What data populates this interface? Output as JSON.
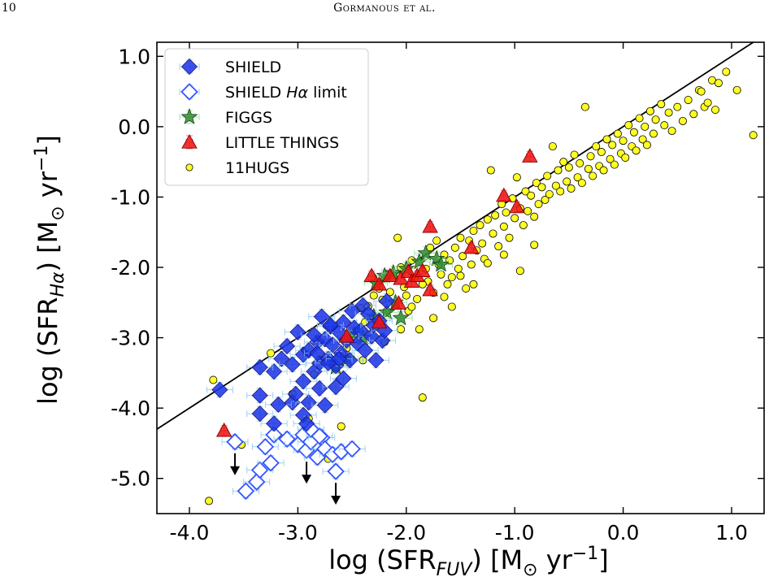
{
  "header": {
    "page_number": "10",
    "running_head": "Gormanous et al."
  },
  "chart_data": {
    "type": "scatter",
    "xlabel_parts": [
      "log",
      "(SFR",
      "FUV",
      ") [M",
      "⊙",
      " yr",
      "−1",
      "]"
    ],
    "ylabel_parts": [
      "log",
      "(SFR",
      "Hα",
      ") [M",
      "⊙",
      " yr",
      "−1",
      "]"
    ],
    "xlim": [
      -4.3,
      1.3
    ],
    "ylim": [
      -5.5,
      1.2
    ],
    "xticks": [
      -4.0,
      -3.0,
      -2.0,
      -1.0,
      0.0,
      1.0
    ],
    "yticks": [
      -5.0,
      -4.0,
      -3.0,
      -2.0,
      -1.0,
      0.0,
      1.0
    ],
    "xtick_labels": [
      "-4.0",
      "-3.0",
      "-2.0",
      "-1.0",
      "0.0",
      "1.0"
    ],
    "ytick_labels": [
      "-5.0",
      "-4.0",
      "-3.0",
      "-2.0",
      "-1.0",
      "0.0",
      "1.0"
    ],
    "grid": false,
    "legend_position": "top-left",
    "one_to_one_line": {
      "x": [
        -4.3,
        1.3
      ],
      "y": [
        -4.3,
        1.3
      ],
      "color": "#000000"
    },
    "series": [
      {
        "name": "SHIELD",
        "marker": "diamond-filled",
        "color": "#1a33e6",
        "points": [
          [
            -3.72,
            -3.74
          ],
          [
            -3.35,
            -3.82
          ],
          [
            -3.22,
            -3.48
          ],
          [
            -3.15,
            -3.3
          ],
          [
            -3.1,
            -3.12
          ],
          [
            -3.05,
            -3.38
          ],
          [
            -3.0,
            -2.92
          ],
          [
            -2.95,
            -3.24
          ],
          [
            -2.9,
            -3.18
          ],
          [
            -2.85,
            -3.48
          ],
          [
            -2.82,
            -3.06
          ],
          [
            -2.8,
            -3.36
          ],
          [
            -2.78,
            -2.7
          ],
          [
            -2.75,
            -3.02
          ],
          [
            -2.72,
            -3.3
          ],
          [
            -2.7,
            -2.84
          ],
          [
            -2.68,
            -3.1
          ],
          [
            -2.65,
            -3.4
          ],
          [
            -2.62,
            -2.92
          ],
          [
            -2.6,
            -3.22
          ],
          [
            -2.58,
            -2.78
          ],
          [
            -2.55,
            -3.04
          ],
          [
            -2.52,
            -3.32
          ],
          [
            -2.5,
            -2.62
          ],
          [
            -2.48,
            -2.86
          ],
          [
            -2.45,
            -3.08
          ],
          [
            -2.42,
            -2.9
          ],
          [
            -2.4,
            -2.54
          ],
          [
            -2.38,
            -3.18
          ],
          [
            -2.35,
            -2.66
          ],
          [
            -2.32,
            -2.98
          ],
          [
            -2.3,
            -2.82
          ],
          [
            -2.28,
            -3.32
          ],
          [
            -2.25,
            -2.76
          ],
          [
            -2.22,
            -3.04
          ],
          [
            -2.2,
            -2.9
          ],
          [
            -2.72,
            -3.36
          ],
          [
            -2.62,
            -3.3
          ],
          [
            -2.85,
            -2.96
          ],
          [
            -2.95,
            -3.62
          ],
          [
            -3.05,
            -3.92
          ],
          [
            -3.18,
            -3.95
          ],
          [
            -3.22,
            -4.22
          ],
          [
            -3.35,
            -4.08
          ],
          [
            -2.9,
            -3.92
          ],
          [
            -2.95,
            -4.1
          ],
          [
            -2.92,
            -4.22
          ],
          [
            -2.8,
            -3.72
          ],
          [
            -2.75,
            -3.96
          ],
          [
            -2.65,
            -3.7
          ],
          [
            -3.35,
            -3.42
          ],
          [
            -2.18,
            -2.48
          ],
          [
            -2.58,
            -3.58
          ],
          [
            -3.02,
            -3.8
          ],
          [
            -2.7,
            -2.82
          ],
          [
            -2.82,
            -3.22
          ]
        ]
      },
      {
        "name": "SHIELD Hα limit",
        "marker": "diamond-open",
        "color": "#3355ff",
        "points": [
          [
            -3.58,
            -4.48
          ],
          [
            -3.48,
            -5.18
          ],
          [
            -3.38,
            -5.05
          ],
          [
            -3.35,
            -4.88
          ],
          [
            -3.3,
            -4.55
          ],
          [
            -3.25,
            -4.78
          ],
          [
            -3.22,
            -4.38
          ],
          [
            -3.1,
            -4.44
          ],
          [
            -3.0,
            -4.52
          ],
          [
            -2.95,
            -4.38
          ],
          [
            -2.92,
            -4.6
          ],
          [
            -2.88,
            -4.48
          ],
          [
            -2.82,
            -4.7
          ],
          [
            -2.78,
            -4.42
          ],
          [
            -2.75,
            -4.58
          ],
          [
            -2.68,
            -4.66
          ],
          [
            -2.65,
            -4.9
          ],
          [
            -2.6,
            -4.62
          ],
          [
            -2.5,
            -4.58
          ],
          [
            -2.88,
            -4.3
          ],
          [
            -2.8,
            -4.4
          ]
        ]
      },
      {
        "name": "FIGGS",
        "marker": "star",
        "color": "#2e8b2e",
        "points": [
          [
            -2.28,
            -2.22
          ],
          [
            -2.2,
            -2.12
          ],
          [
            -2.12,
            -2.08
          ],
          [
            -2.0,
            -2.02
          ],
          [
            -1.88,
            -1.92
          ],
          [
            -1.82,
            -1.8
          ],
          [
            -1.72,
            -1.88
          ],
          [
            -1.68,
            -1.96
          ],
          [
            -2.18,
            -2.64
          ],
          [
            -2.05,
            -2.72
          ],
          [
            -2.1,
            -2.5
          ],
          [
            -2.4,
            -3.0
          ],
          [
            -2.55,
            -3.3
          ],
          [
            -2.48,
            -2.94
          ],
          [
            -2.3,
            -2.7
          ],
          [
            -2.65,
            -3.42
          ]
        ]
      },
      {
        "name": "LITTLE THINGS",
        "marker": "triangle-up",
        "color": "#ee1111",
        "points": [
          [
            -3.68,
            -4.32
          ],
          [
            -2.32,
            -2.12
          ],
          [
            -2.25,
            -2.24
          ],
          [
            -2.15,
            -2.12
          ],
          [
            -2.05,
            -2.16
          ],
          [
            -1.98,
            -2.06
          ],
          [
            -1.95,
            -2.2
          ],
          [
            -1.9,
            -2.12
          ],
          [
            -1.78,
            -2.32
          ],
          [
            -1.78,
            -1.42
          ],
          [
            -1.4,
            -1.72
          ],
          [
            -1.1,
            -0.98
          ],
          [
            -0.98,
            -1.14
          ],
          [
            -0.86,
            -0.42
          ],
          [
            -2.07,
            -2.51
          ],
          [
            -2.55,
            -2.98
          ],
          [
            -2.25,
            -2.78
          ],
          [
            -1.85,
            -2.05
          ]
        ]
      },
      {
        "name": "11HUGS",
        "marker": "circle",
        "color": "#ffff22",
        "points": [
          [
            -3.82,
            -5.32
          ],
          [
            -3.78,
            -3.6
          ],
          [
            -3.52,
            -4.52
          ],
          [
            -3.25,
            -3.22
          ],
          [
            -3.05,
            -3.8
          ],
          [
            -2.9,
            -4.15
          ],
          [
            -2.85,
            -3.52
          ],
          [
            -2.6,
            -4.26
          ],
          [
            -2.48,
            -3.02
          ],
          [
            -2.42,
            -2.58
          ],
          [
            -2.38,
            -2.78
          ],
          [
            -2.35,
            -2.55
          ],
          [
            -2.3,
            -2.4
          ],
          [
            -2.25,
            -2.3
          ],
          [
            -2.22,
            -2.46
          ],
          [
            -2.18,
            -2.62
          ],
          [
            -2.15,
            -2.35
          ],
          [
            -2.12,
            -2.12
          ],
          [
            -2.1,
            -2.52
          ],
          [
            -2.08,
            -1.58
          ],
          [
            -2.05,
            -2.0
          ],
          [
            -2.02,
            -2.28
          ],
          [
            -2.0,
            -2.4
          ],
          [
            -1.98,
            -2.62
          ],
          [
            -1.95,
            -1.9
          ],
          [
            -1.92,
            -2.15
          ],
          [
            -1.9,
            -2.45
          ],
          [
            -1.88,
            -2.88
          ],
          [
            -1.85,
            -3.85
          ],
          [
            -1.82,
            -2.02
          ],
          [
            -1.8,
            -2.2
          ],
          [
            -1.78,
            -1.72
          ],
          [
            -1.75,
            -2.36
          ],
          [
            -1.72,
            -1.62
          ],
          [
            -1.7,
            -1.96
          ],
          [
            -1.68,
            -2.1
          ],
          [
            -1.65,
            -1.82
          ],
          [
            -1.62,
            -2.24
          ],
          [
            -1.6,
            -1.9
          ],
          [
            -1.58,
            -2.14
          ],
          [
            -1.55,
            -1.72
          ],
          [
            -1.52,
            -2.02
          ],
          [
            -1.5,
            -1.58
          ],
          [
            -1.48,
            -1.84
          ],
          [
            -1.45,
            -2.3
          ],
          [
            -1.42,
            -1.62
          ],
          [
            -1.4,
            -1.96
          ],
          [
            -1.38,
            -1.48
          ],
          [
            -1.35,
            -1.76
          ],
          [
            -1.32,
            -1.4
          ],
          [
            -1.3,
            -1.66
          ],
          [
            -1.28,
            -1.88
          ],
          [
            -1.25,
            -1.32
          ],
          [
            -1.22,
            -0.62
          ],
          [
            -1.2,
            -1.52
          ],
          [
            -1.18,
            -1.26
          ],
          [
            -1.15,
            -1.7
          ],
          [
            -1.12,
            -1.1
          ],
          [
            -1.1,
            -1.42
          ],
          [
            -1.08,
            -1.22
          ],
          [
            -1.05,
            -1.58
          ],
          [
            -1.02,
            -1.02
          ],
          [
            -1.0,
            -1.3
          ],
          [
            -0.98,
            -0.72
          ],
          [
            -0.95,
            -1.16
          ],
          [
            -0.92,
            -1.4
          ],
          [
            -0.9,
            -0.92
          ],
          [
            -0.88,
            -1.2
          ],
          [
            -0.85,
            -0.98
          ],
          [
            -0.82,
            -1.28
          ],
          [
            -0.8,
            -0.8
          ],
          [
            -0.78,
            -1.1
          ],
          [
            -0.75,
            -0.86
          ],
          [
            -0.72,
            -1.04
          ],
          [
            -0.7,
            -0.7
          ],
          [
            -0.68,
            -0.96
          ],
          [
            -0.65,
            -0.28
          ],
          [
            -0.62,
            -0.84
          ],
          [
            -0.6,
            -0.62
          ],
          [
            -0.58,
            -0.92
          ],
          [
            -0.55,
            -0.5
          ],
          [
            -0.52,
            -0.78
          ],
          [
            -0.5,
            -0.58
          ],
          [
            -0.48,
            -0.88
          ],
          [
            -0.45,
            -0.4
          ],
          [
            -0.42,
            -0.72
          ],
          [
            -0.4,
            -0.52
          ],
          [
            -0.38,
            -0.8
          ],
          [
            -0.35,
            0.28
          ],
          [
            -0.32,
            -0.6
          ],
          [
            -0.3,
            -0.42
          ],
          [
            -0.28,
            -0.7
          ],
          [
            -0.25,
            -0.28
          ],
          [
            -0.22,
            -0.56
          ],
          [
            -0.2,
            -0.36
          ],
          [
            -0.18,
            -0.62
          ],
          [
            -0.15,
            -0.18
          ],
          [
            -0.12,
            -0.46
          ],
          [
            -0.1,
            -0.26
          ],
          [
            -0.08,
            -0.54
          ],
          [
            -0.05,
            -0.1
          ],
          [
            -0.02,
            -0.38
          ],
          [
            0.0,
            -0.2
          ],
          [
            0.02,
            -0.44
          ],
          [
            0.05,
            0.02
          ],
          [
            0.08,
            -0.28
          ],
          [
            0.1,
            -0.08
          ],
          [
            0.12,
            -0.34
          ],
          [
            0.15,
            0.12
          ],
          [
            0.18,
            -0.18
          ],
          [
            0.2,
            0.0
          ],
          [
            0.22,
            -0.26
          ],
          [
            0.25,
            0.22
          ],
          [
            0.28,
            -0.1
          ],
          [
            0.3,
            0.1
          ],
          [
            0.35,
            0.32
          ],
          [
            0.38,
            0.02
          ],
          [
            0.42,
            0.2
          ],
          [
            0.45,
            -0.06
          ],
          [
            0.5,
            0.28
          ],
          [
            0.55,
            0.08
          ],
          [
            0.6,
            0.38
          ],
          [
            0.65,
            0.18
          ],
          [
            0.7,
            0.52
          ],
          [
            0.72,
            0.5
          ],
          [
            0.75,
            0.28
          ],
          [
            0.78,
            0.34
          ],
          [
            0.82,
            0.66
          ],
          [
            0.85,
            0.24
          ],
          [
            0.88,
            0.62
          ],
          [
            0.95,
            0.78
          ],
          [
            1.05,
            0.52
          ],
          [
            1.2,
            -0.12
          ],
          [
            -0.95,
            -2.05
          ],
          [
            -1.5,
            -2.12
          ],
          [
            -1.65,
            -2.42
          ],
          [
            -1.25,
            -1.94
          ],
          [
            -1.75,
            -2.72
          ],
          [
            -1.95,
            -2.56
          ],
          [
            -2.4,
            -3.32
          ],
          [
            -2.55,
            -3.15
          ],
          [
            -2.72,
            -4.72
          ],
          [
            -0.82,
            -1.68
          ],
          [
            -1.1,
            -1.82
          ],
          [
            -1.38,
            -2.24
          ],
          [
            -1.85,
            -2.24
          ],
          [
            -1.58,
            -2.56
          ],
          [
            -2.05,
            -2.88
          ],
          [
            -2.2,
            -3.06
          ]
        ]
      }
    ],
    "upper_limit_arrows": [
      [
        -3.58,
        -4.48
      ],
      [
        -2.92,
        -4.6
      ],
      [
        -2.65,
        -4.9
      ]
    ]
  }
}
